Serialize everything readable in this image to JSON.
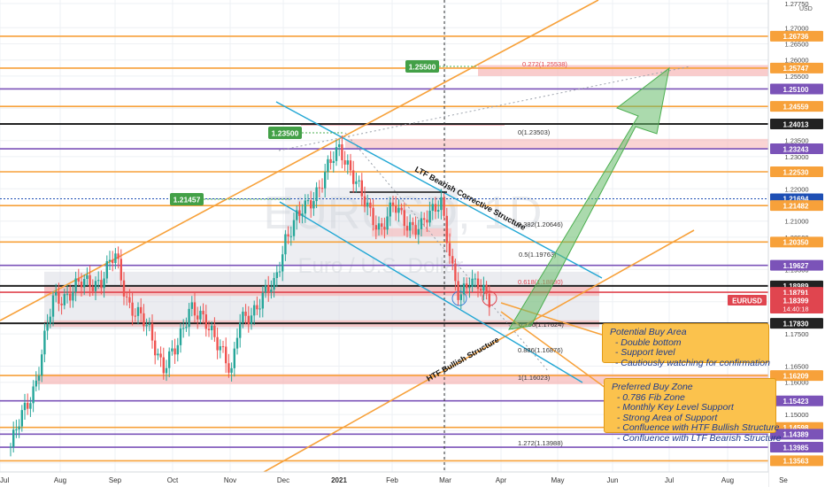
{
  "chart_data": {
    "type": "candlestick",
    "symbol_watermark": "EURUSD, 1D",
    "subtitle_watermark": "Euro / U.S. Dollar",
    "currency": "USD",
    "x_labels": [
      "Jul",
      "Aug",
      "Sep",
      "Oct",
      "Nov",
      "Dec",
      "2021",
      "Feb",
      "Mar",
      "Apr",
      "May",
      "Jun",
      "Jul",
      "Aug",
      "Se"
    ],
    "y_ticks": [
      "1.27750",
      "1.27000",
      "1.26500",
      "1.26000",
      "1.25500",
      "1.24500",
      "1.23500",
      "1.23000",
      "1.22000",
      "1.21000",
      "1.20500",
      "1.19500",
      "1.18500",
      "1.17500",
      "1.16500",
      "1.16000",
      "1.15000",
      "1.14500",
      "1.13500"
    ],
    "price_levels": [
      {
        "value": 1.26736,
        "color": "#f7a13a"
      },
      {
        "value": 1.25747,
        "color": "#f7a13a"
      },
      {
        "value": 1.251,
        "color": "#7b53b8"
      },
      {
        "value": 1.24559,
        "color": "#f7a13a"
      },
      {
        "value": 1.24013,
        "color": "#222222"
      },
      {
        "value": 1.23243,
        "color": "#7b53b8"
      },
      {
        "value": 1.2253,
        "color": "#f7a13a"
      },
      {
        "value": 1.21694,
        "color": "#1e4fb4"
      },
      {
        "value": 1.21482,
        "color": "#f7a13a"
      },
      {
        "value": 1.2035,
        "color": "#f7a13a"
      },
      {
        "value": 1.19627,
        "color": "#7b53b8"
      },
      {
        "value": 1.18989,
        "color": "#222222"
      },
      {
        "value": 1.18791,
        "color": "#e0454f"
      },
      {
        "value": 1.1783,
        "color": "#222222"
      },
      {
        "value": 1.16209,
        "color": "#f7a13a"
      },
      {
        "value": 1.15423,
        "color": "#7b53b8"
      },
      {
        "value": 1.14598,
        "color": "#f7a13a"
      },
      {
        "value": 1.14389,
        "color": "#7b53b8"
      },
      {
        "value": 1.13985,
        "color": "#7b53b8"
      },
      {
        "value": 1.13563,
        "color": "#f7a13a"
      }
    ],
    "current_price": {
      "symbol": "EURUSD",
      "value": "1.18399",
      "countdown": "14:40:18"
    },
    "fib_labels": [
      {
        "text": "0.272(1.25538)"
      },
      {
        "text": "0(1.23503)"
      },
      {
        "text": "0.382(1.20646)"
      },
      {
        "text": "0.5(1.19763)"
      },
      {
        "text": "0.618(1.18880)"
      },
      {
        "text": "0.786(1.17624)"
      },
      {
        "text": "0.886(1.16876)"
      },
      {
        "text": "1(1.16023)"
      },
      {
        "text": "1.272(1.13988)"
      }
    ],
    "level_tags": [
      "1.25500",
      "1.23500",
      "1.21457"
    ],
    "trendline_labels": [
      "LTF Bearish Corrective Structure",
      "HTF Bullish Structure"
    ]
  },
  "notes": {
    "potential": "Potential Buy Area\n  - Double bottom\n  - Support level\n  - Cautiously watching for confirmation",
    "preferred": "Preferred Buy Zone\n  - 0.786 Fib Zone\n  - Monthly Key Level Support\n  - Strong Area of Support\n  - Confluence with HTF Bullish Structure\n  - Confluence with LTF Bearish Structure"
  }
}
